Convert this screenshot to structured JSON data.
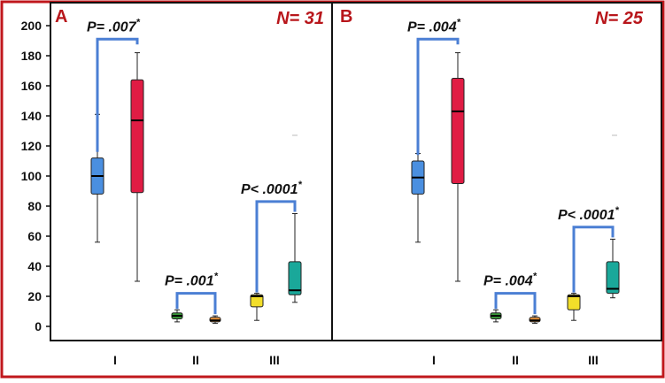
{
  "frame_color": "#c0171c",
  "chart_data": [
    {
      "type": "box",
      "panel_letter": "A",
      "n_label": "N= 31",
      "categories": [
        "I",
        "II",
        "III"
      ],
      "ylim": [
        0,
        205
      ],
      "yticks": [
        0,
        20,
        40,
        60,
        80,
        100,
        120,
        140,
        160,
        180,
        200
      ],
      "boxes": [
        {
          "group": "I",
          "min": 56,
          "q1": 88,
          "median": 100,
          "q3": 112,
          "max": 141,
          "color": "#4a8fe0"
        },
        {
          "group": "I",
          "min": 30,
          "q1": 89,
          "median": 137,
          "q3": 164,
          "max": 182,
          "color": "#e01c44"
        },
        {
          "group": "II",
          "min": 3,
          "q1": 5,
          "median": 7,
          "q3": 9,
          "max": 11,
          "color": "#3a9a3a"
        },
        {
          "group": "II",
          "min": 2,
          "q1": 3,
          "median": 4,
          "q3": 6,
          "max": 7,
          "color": "#e8923a"
        },
        {
          "group": "III",
          "min": 4,
          "q1": 13,
          "median": 20,
          "q3": 21,
          "max": 22,
          "color": "#f2de2a"
        },
        {
          "group": "III",
          "min": 16,
          "q1": 21,
          "median": 24,
          "q3": 43,
          "max": 75,
          "color": "#1aa89a"
        }
      ],
      "comparisons": [
        {
          "group": "I",
          "label": "P= .007",
          "star": "*"
        },
        {
          "group": "II",
          "label": "P= .001",
          "star": "*"
        },
        {
          "group": "III",
          "label": "P< .0001",
          "star": "*"
        }
      ]
    },
    {
      "type": "box",
      "panel_letter": "B",
      "n_label": "N= 25",
      "categories": [
        "I",
        "II",
        "III"
      ],
      "ylim": [
        0,
        205
      ],
      "yticks": [],
      "boxes": [
        {
          "group": "I",
          "min": 56,
          "q1": 88,
          "median": 99,
          "q3": 110,
          "max": 115,
          "color": "#4a8fe0"
        },
        {
          "group": "I",
          "min": 30,
          "q1": 95,
          "median": 143,
          "q3": 165,
          "max": 182,
          "color": "#e01c44"
        },
        {
          "group": "II",
          "min": 3,
          "q1": 5,
          "median": 7,
          "q3": 9,
          "max": 11,
          "color": "#3a9a3a"
        },
        {
          "group": "II",
          "min": 2,
          "q1": 3,
          "median": 4,
          "q3": 6,
          "max": 7,
          "color": "#e8923a"
        },
        {
          "group": "III",
          "min": 4,
          "q1": 11,
          "median": 20,
          "q3": 21,
          "max": 22,
          "color": "#f2de2a"
        },
        {
          "group": "III",
          "min": 19,
          "q1": 22,
          "median": 25,
          "q3": 43,
          "max": 58,
          "color": "#1aa89a"
        }
      ],
      "comparisons": [
        {
          "group": "I",
          "label": "P= .004",
          "star": "*"
        },
        {
          "group": "II",
          "label": "P= .004",
          "star": "*"
        },
        {
          "group": "III",
          "label": "P< .0001",
          "star": "*"
        }
      ]
    }
  ]
}
